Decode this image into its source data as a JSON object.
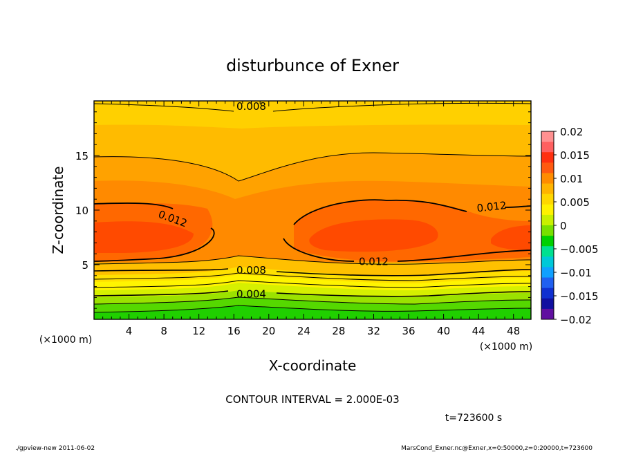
{
  "chart_data": {
    "type": "contour",
    "title": "disturbunce of Exner",
    "xlabel": "X-coordinate",
    "ylabel": "Z-coordinate",
    "x_unit": "(×1000 m)",
    "y_unit": "(×1000 m)",
    "xlim": [
      0,
      50
    ],
    "ylim": [
      0,
      20
    ],
    "x_ticks": [
      4,
      8,
      12,
      16,
      20,
      24,
      28,
      32,
      36,
      40,
      44,
      48
    ],
    "y_ticks": [
      5,
      10,
      15
    ],
    "contour_interval_text": "CONTOUR INTERVAL = 2.000E-03",
    "contour_levels": [
      0.002,
      0.004,
      0.006,
      0.008,
      0.01,
      0.012
    ],
    "contour_labels": [
      {
        "text": "0.008",
        "x": 18.0,
        "z": 19.5
      },
      {
        "text": "0.012",
        "x": 9.0,
        "z": 9.2
      },
      {
        "text": "0.012",
        "x": 45.5,
        "z": 10.3
      },
      {
        "text": "0.012",
        "x": 32.0,
        "z": 5.3
      },
      {
        "text": "0.008",
        "x": 18.0,
        "z": 4.5
      },
      {
        "text": "0.004",
        "x": 18.0,
        "z": 2.3
      }
    ],
    "colorbar": {
      "ticks": [
        "0.02",
        "0.015",
        "0.01",
        "0.005",
        "0",
        "−0.005",
        "−0.01",
        "−0.015",
        "−0.02"
      ],
      "colors_top_to_bottom": [
        "#ff9090",
        "#ff6060",
        "#ff3010",
        "#ff5a10",
        "#ff8c00",
        "#ffb400",
        "#ffd700",
        "#fff200",
        "#c8f000",
        "#78e000",
        "#00d000",
        "#00e090",
        "#00c8d8",
        "#10a0ff",
        "#2060f0",
        "#1030d0",
        "#1010a0",
        "#6010a0"
      ]
    },
    "time_label": "t=723600 s"
  },
  "footer": {
    "left": "./gpview-new  2011-06-02",
    "right": "MarsCond_Exner.nc@Exner,x=0:50000,z=0:20000,t=723600"
  }
}
